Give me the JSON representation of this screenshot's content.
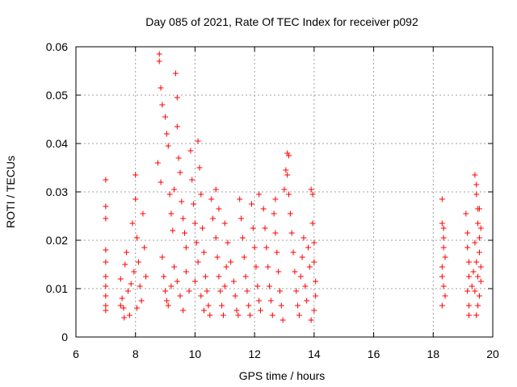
{
  "chart_data": {
    "type": "scatter",
    "title": "Day 085 of 2021, Rate Of TEC Index for receiver p092",
    "xlabel": "GPS time / hours",
    "ylabel": "ROTI / TECUs",
    "xlim": [
      6,
      20
    ],
    "ylim": [
      0,
      0.06
    ],
    "xticks": [
      6,
      8,
      10,
      12,
      14,
      16,
      18,
      20
    ],
    "xtick_labels": [
      "6",
      "8",
      "10",
      "12",
      "14",
      "16",
      "18",
      "20"
    ],
    "yticks": [
      0,
      0.01,
      0.02,
      0.03,
      0.04,
      0.05,
      0.06
    ],
    "ytick_labels": [
      "0",
      "0.01",
      "0.02",
      "0.03",
      "0.04",
      "0.05",
      "0.06"
    ],
    "grid": true,
    "marker": "+",
    "series_color": "#ff0000",
    "series": [
      {
        "name": "ROTI",
        "points": [
          [
            7.0,
            0.0325
          ],
          [
            7.0,
            0.027
          ],
          [
            7.0,
            0.0245
          ],
          [
            7.0,
            0.018
          ],
          [
            7.0,
            0.0155
          ],
          [
            7.0,
            0.0125
          ],
          [
            7.0,
            0.0105
          ],
          [
            7.0,
            0.0085
          ],
          [
            7.0,
            0.0065
          ],
          [
            7.0,
            0.0055
          ],
          [
            7.5,
            0.012
          ],
          [
            7.55,
            0.008
          ],
          [
            7.6,
            0.006
          ],
          [
            7.65,
            0.015
          ],
          [
            7.7,
            0.0175
          ],
          [
            7.75,
            0.0095
          ],
          [
            7.8,
            0.0045
          ],
          [
            7.85,
            0.011
          ],
          [
            7.9,
            0.0235
          ],
          [
            7.95,
            0.0135
          ],
          [
            7.5,
            0.0065
          ],
          [
            7.62,
            0.004
          ],
          [
            8.0,
            0.0335
          ],
          [
            8.0,
            0.0285
          ],
          [
            8.05,
            0.0205
          ],
          [
            8.1,
            0.0155
          ],
          [
            8.15,
            0.0105
          ],
          [
            8.2,
            0.0075
          ],
          [
            8.25,
            0.0255
          ],
          [
            8.3,
            0.0185
          ],
          [
            8.35,
            0.0125
          ],
          [
            8.05,
            0.006
          ],
          [
            8.8,
            0.0585
          ],
          [
            8.8,
            0.057
          ],
          [
            8.85,
            0.0515
          ],
          [
            8.9,
            0.048
          ],
          [
            9.0,
            0.0455
          ],
          [
            9.05,
            0.042
          ],
          [
            9.1,
            0.0395
          ],
          [
            8.75,
            0.036
          ],
          [
            8.85,
            0.032
          ],
          [
            9.15,
            0.0295
          ],
          [
            9.2,
            0.0255
          ],
          [
            9.25,
            0.022
          ],
          [
            9.35,
            0.0545
          ],
          [
            9.4,
            0.0495
          ],
          [
            9.4,
            0.0435
          ],
          [
            9.45,
            0.037
          ],
          [
            9.5,
            0.034
          ],
          [
            9.3,
            0.0305
          ],
          [
            9.55,
            0.028
          ],
          [
            9.6,
            0.0245
          ],
          [
            9.65,
            0.0215
          ],
          [
            9.7,
            0.0185
          ],
          [
            8.9,
            0.0165
          ],
          [
            8.95,
            0.0125
          ],
          [
            9.0,
            0.0095
          ],
          [
            9.05,
            0.0075
          ],
          [
            9.1,
            0.0065
          ],
          [
            9.2,
            0.0105
          ],
          [
            9.3,
            0.0145
          ],
          [
            9.4,
            0.0115
          ],
          [
            9.5,
            0.0085
          ],
          [
            9.6,
            0.0055
          ],
          [
            9.7,
            0.0135
          ],
          [
            9.8,
            0.0095
          ],
          [
            9.85,
            0.0385
          ],
          [
            9.9,
            0.0325
          ],
          [
            9.95,
            0.0275
          ],
          [
            10.0,
            0.0235
          ],
          [
            10.05,
            0.0195
          ],
          [
            10.1,
            0.0155
          ],
          [
            10.1,
            0.0405
          ],
          [
            10.15,
            0.035
          ],
          [
            10.2,
            0.0295
          ],
          [
            10.25,
            0.0225
          ],
          [
            10.3,
            0.0175
          ],
          [
            10.35,
            0.0125
          ],
          [
            10.4,
            0.0095
          ],
          [
            10.45,
            0.0065
          ],
          [
            10.5,
            0.0045
          ],
          [
            10.2,
            0.0085
          ],
          [
            10.0,
            0.0115
          ],
          [
            10.3,
            0.0055
          ],
          [
            10.55,
            0.0285
          ],
          [
            10.6,
            0.0245
          ],
          [
            10.7,
            0.0205
          ],
          [
            10.75,
            0.0165
          ],
          [
            10.8,
            0.0125
          ],
          [
            10.85,
            0.0095
          ],
          [
            10.9,
            0.0065
          ],
          [
            10.95,
            0.0045
          ],
          [
            11.0,
            0.0105
          ],
          [
            11.05,
            0.0145
          ],
          [
            10.7,
            0.0305
          ],
          [
            10.8,
            0.0265
          ],
          [
            11.0,
            0.0235
          ],
          [
            11.1,
            0.0195
          ],
          [
            11.2,
            0.0155
          ],
          [
            11.3,
            0.0115
          ],
          [
            11.35,
            0.0085
          ],
          [
            11.4,
            0.0055
          ],
          [
            11.45,
            0.0045
          ],
          [
            11.5,
            0.0285
          ],
          [
            11.55,
            0.0245
          ],
          [
            11.6,
            0.0205
          ],
          [
            11.65,
            0.0165
          ],
          [
            11.7,
            0.0125
          ],
          [
            11.75,
            0.0095
          ],
          [
            11.8,
            0.0065
          ],
          [
            11.85,
            0.0045
          ],
          [
            11.9,
            0.0275
          ],
          [
            11.95,
            0.0225
          ],
          [
            12.0,
            0.0185
          ],
          [
            12.05,
            0.0145
          ],
          [
            12.1,
            0.0105
          ],
          [
            12.15,
            0.0075
          ],
          [
            12.2,
            0.0055
          ],
          [
            12.15,
            0.0295
          ],
          [
            12.3,
            0.0265
          ],
          [
            12.35,
            0.0225
          ],
          [
            12.4,
            0.0185
          ],
          [
            12.45,
            0.0145
          ],
          [
            12.5,
            0.0105
          ],
          [
            12.55,
            0.0075
          ],
          [
            12.6,
            0.0045
          ],
          [
            12.65,
            0.0255
          ],
          [
            12.7,
            0.0215
          ],
          [
            12.75,
            0.0175
          ],
          [
            12.8,
            0.0135
          ],
          [
            12.85,
            0.0095
          ],
          [
            12.9,
            0.0065
          ],
          [
            12.95,
            0.0035
          ],
          [
            12.7,
            0.0285
          ],
          [
            13.0,
            0.0305
          ],
          [
            13.05,
            0.0345
          ],
          [
            13.1,
            0.0335
          ],
          [
            13.15,
            0.0295
          ],
          [
            13.2,
            0.0255
          ],
          [
            13.1,
            0.038
          ],
          [
            13.15,
            0.0375
          ],
          [
            13.25,
            0.0215
          ],
          [
            13.3,
            0.0175
          ],
          [
            13.35,
            0.0135
          ],
          [
            13.4,
            0.0095
          ],
          [
            13.45,
            0.0065
          ],
          [
            13.5,
            0.0045
          ],
          [
            13.55,
            0.0125
          ],
          [
            13.6,
            0.0165
          ],
          [
            13.65,
            0.0205
          ],
          [
            13.7,
            0.0105
          ],
          [
            13.75,
            0.0075
          ],
          [
            13.8,
            0.0185
          ],
          [
            13.85,
            0.0145
          ],
          [
            13.9,
            0.0305
          ],
          [
            13.95,
            0.0295
          ],
          [
            13.95,
            0.0235
          ],
          [
            14.0,
            0.0195
          ],
          [
            14.0,
            0.0155
          ],
          [
            14.05,
            0.0115
          ],
          [
            14.05,
            0.0085
          ],
          [
            14.0,
            0.0055
          ],
          [
            13.9,
            0.0035
          ],
          [
            18.3,
            0.0285
          ],
          [
            18.3,
            0.0235
          ],
          [
            18.35,
            0.0205
          ],
          [
            18.35,
            0.0185
          ],
          [
            18.4,
            0.0165
          ],
          [
            18.3,
            0.0145
          ],
          [
            18.3,
            0.0125
          ],
          [
            18.35,
            0.0105
          ],
          [
            18.4,
            0.0085
          ],
          [
            18.3,
            0.0065
          ],
          [
            18.35,
            0.0225
          ],
          [
            19.1,
            0.0255
          ],
          [
            19.15,
            0.0215
          ],
          [
            19.15,
            0.0185
          ],
          [
            19.2,
            0.0155
          ],
          [
            19.2,
            0.0125
          ],
          [
            19.15,
            0.0095
          ],
          [
            19.2,
            0.0065
          ],
          [
            19.2,
            0.0045
          ],
          [
            19.3,
            0.0105
          ],
          [
            19.35,
            0.0135
          ],
          [
            19.4,
            0.0335
          ],
          [
            19.45,
            0.0315
          ],
          [
            19.45,
            0.0295
          ],
          [
            19.5,
            0.0265
          ],
          [
            19.5,
            0.0235
          ],
          [
            19.55,
            0.0205
          ],
          [
            19.55,
            0.0175
          ],
          [
            19.6,
            0.0145
          ],
          [
            19.6,
            0.0115
          ],
          [
            19.55,
            0.0085
          ],
          [
            19.5,
            0.0065
          ],
          [
            19.45,
            0.0045
          ],
          [
            19.6,
            0.0225
          ],
          [
            19.4,
            0.0195
          ],
          [
            19.45,
            0.0155
          ],
          [
            19.5,
            0.0125
          ],
          [
            19.4,
            0.0095
          ],
          [
            19.55,
            0.0265
          ]
        ]
      }
    ]
  }
}
